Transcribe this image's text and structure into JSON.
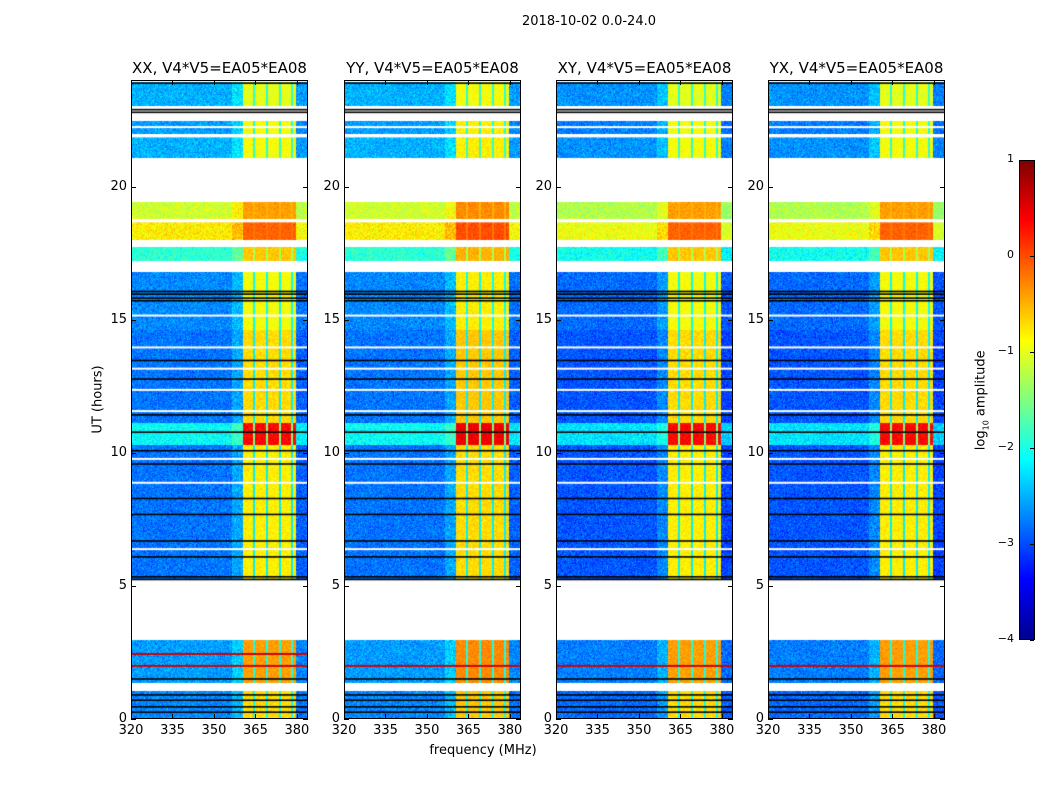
{
  "suptitle": "2018-10-02 0.0-24.0",
  "chart_data": {
    "type": "heatmap",
    "xlabel": "frequency (MHz)",
    "ylabel": "UT (hours)",
    "xlim": [
      320,
      384
    ],
    "ylim": [
      0,
      24
    ],
    "xticks": [
      "320",
      "335",
      "350",
      "365",
      "380"
    ],
    "xtick_values": [
      320,
      335,
      350,
      365,
      380
    ],
    "yticks": [
      "0",
      "5",
      "10",
      "15",
      "20"
    ],
    "ytick_values": [
      0,
      5,
      10,
      15,
      20
    ],
    "colorbar": {
      "label": "log10 amplitude",
      "label_main": "log",
      "label_sub": "10",
      "label_rest": " amplitude",
      "range": [
        -4,
        1
      ],
      "ticks": [
        "1",
        "0",
        "−1",
        "−2",
        "−3",
        "−4"
      ],
      "tick_values": [
        1,
        0,
        -1,
        -2,
        -3,
        -4
      ],
      "colormap": "jet"
    },
    "bright_band_mhz": [
      360.5,
      380
    ],
    "subband_edges_mhz": [
      364.7,
      369.4,
      374.1,
      378.6
    ],
    "segments": [
      {
        "t0": 0.0,
        "t1": 1.0,
        "bg": -2.7,
        "band": -0.7
      },
      {
        "t0": 1.3,
        "t1": 2.95,
        "bg": -2.6,
        "band": -0.4
      },
      {
        "t0": 5.2,
        "t1": 10.3,
        "bg": -2.8,
        "band": -0.8
      },
      {
        "t0": 10.3,
        "t1": 11.1,
        "bg": -2.1,
        "band": 0.35
      },
      {
        "t0": 11.1,
        "t1": 14.6,
        "bg": -2.8,
        "band": -0.7
      },
      {
        "t0": 14.6,
        "t1": 16.8,
        "bg": -2.7,
        "band": -0.9
      },
      {
        "t0": 17.2,
        "t1": 17.75,
        "bg": -1.9,
        "band": -0.6
      },
      {
        "t0": 18.0,
        "t1": 18.7,
        "bg": -0.8,
        "band": -0.1
      },
      {
        "t0": 18.8,
        "t1": 19.45,
        "bg": -1.1,
        "band": -0.4
      },
      {
        "t0": 21.1,
        "t1": 21.9,
        "bg": -2.5,
        "band": -0.9
      },
      {
        "t0": 22.0,
        "t1": 22.5,
        "bg": -2.6,
        "band": -0.9
      },
      {
        "t0": 23.05,
        "t1": 23.95,
        "bg": -2.5,
        "band": -1.0
      }
    ],
    "flagged_lines_hours": [
      1.1,
      6.4,
      8.9,
      9.8,
      11.6,
      12.4,
      13.2,
      14.0,
      15.2,
      17.0,
      18.75,
      21.95,
      22.3
    ],
    "black_lines_hours": [
      0.25,
      0.45,
      0.7,
      0.9,
      1.5,
      5.25,
      5.35,
      6.1,
      6.7,
      7.7,
      8.3,
      9.6,
      10.1,
      10.8,
      11.45,
      12.8,
      13.5,
      15.75,
      15.85,
      16.0,
      16.1,
      22.85,
      22.95,
      23.95
    ],
    "panels": [
      {
        "title": "XX, V4*V5=EA05*EA08",
        "bg_offset": 0.0,
        "band_offset": 0.0,
        "red_lines_hours": [
          2.45,
          2.0
        ]
      },
      {
        "title": "YY, V4*V5=EA05*EA08",
        "bg_offset": 0.0,
        "band_offset": 0.1,
        "red_lines_hours": [
          2.0
        ]
      },
      {
        "title": "XY, V4*V5=EA05*EA08",
        "bg_offset": -0.15,
        "band_offset": 0.0,
        "red_lines_hours": [
          2.0
        ]
      },
      {
        "title": "YX, V4*V5=EA05*EA08",
        "bg_offset": -0.15,
        "band_offset": 0.0,
        "red_lines_hours": [
          2.0
        ]
      }
    ]
  }
}
